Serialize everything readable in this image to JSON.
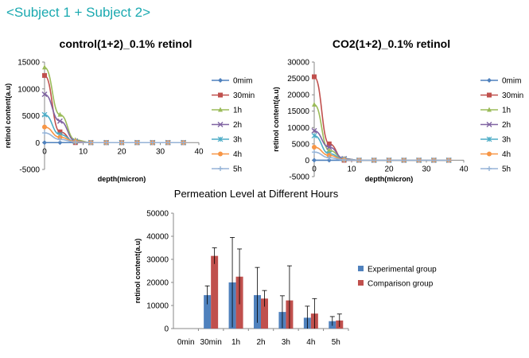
{
  "heading": "<Subject 1 + Subject 2>",
  "chart_data": [
    {
      "type": "line",
      "title": "control(1+2)_0.1% retinol",
      "xlabel": "depth(micron)",
      "ylabel": "retinol content(a.u)",
      "xlim": [
        0,
        40
      ],
      "ylim": [
        -5000,
        15000
      ],
      "xticks": [
        0,
        10,
        20,
        30,
        40
      ],
      "yticks": [
        -5000,
        0,
        5000,
        10000,
        15000
      ],
      "x": [
        0,
        4,
        8,
        12,
        16,
        20,
        24,
        28,
        32,
        36
      ],
      "legend_position": "right",
      "series": [
        {
          "name": "0mim",
          "color": "#4f81bd",
          "marker": "diamond",
          "values": [
            0,
            0,
            0,
            0,
            0,
            0,
            0,
            0,
            0,
            0
          ]
        },
        {
          "name": "30min",
          "color": "#c0504d",
          "marker": "square",
          "values": [
            12500,
            2000,
            0,
            0,
            0,
            0,
            0,
            0,
            0,
            0
          ]
        },
        {
          "name": "1h",
          "color": "#9bbb59",
          "marker": "triangle",
          "values": [
            14000,
            5200,
            500,
            0,
            0,
            0,
            0,
            0,
            0,
            0
          ]
        },
        {
          "name": "2h",
          "color": "#8064a2",
          "marker": "x",
          "values": [
            9000,
            4000,
            300,
            0,
            0,
            0,
            0,
            0,
            0,
            0
          ]
        },
        {
          "name": "3h",
          "color": "#4bacc6",
          "marker": "star",
          "values": [
            5200,
            1500,
            200,
            0,
            0,
            0,
            0,
            0,
            0,
            0
          ]
        },
        {
          "name": "4h",
          "color": "#f79646",
          "marker": "circle",
          "values": [
            2900,
            1000,
            200,
            0,
            0,
            0,
            0,
            0,
            0,
            0
          ]
        },
        {
          "name": "5h",
          "color": "#95b3d7",
          "marker": "plus",
          "values": [
            1800,
            600,
            100,
            0,
            0,
            0,
            0,
            0,
            0,
            0
          ]
        }
      ]
    },
    {
      "type": "line",
      "title": "CO2(1+2)_0.1% retinol",
      "xlabel": "depth(micron)",
      "ylabel": "retinol content(a.u)",
      "xlim": [
        0,
        40
      ],
      "ylim": [
        -5000,
        30000
      ],
      "xticks": [
        0,
        10,
        20,
        30,
        40
      ],
      "yticks": [
        -5000,
        0,
        5000,
        10000,
        15000,
        20000,
        25000,
        30000
      ],
      "x": [
        0,
        4,
        8,
        12,
        16,
        20,
        24,
        28,
        32,
        36
      ],
      "legend_position": "right",
      "series": [
        {
          "name": "0mim",
          "color": "#4f81bd",
          "marker": "diamond",
          "values": [
            0,
            0,
            0,
            0,
            0,
            0,
            0,
            0,
            0,
            0
          ]
        },
        {
          "name": "30min",
          "color": "#c0504d",
          "marker": "square",
          "values": [
            25500,
            5000,
            0,
            0,
            0,
            0,
            0,
            0,
            0,
            0
          ]
        },
        {
          "name": "1h",
          "color": "#9bbb59",
          "marker": "triangle",
          "values": [
            17000,
            3000,
            500,
            0,
            0,
            0,
            0,
            0,
            0,
            0
          ]
        },
        {
          "name": "2h",
          "color": "#8064a2",
          "marker": "x",
          "values": [
            9000,
            4000,
            500,
            0,
            0,
            0,
            0,
            0,
            0,
            0
          ]
        },
        {
          "name": "3h",
          "color": "#4bacc6",
          "marker": "star",
          "values": [
            7500,
            2000,
            300,
            0,
            0,
            0,
            0,
            0,
            0,
            0
          ]
        },
        {
          "name": "4h",
          "color": "#f79646",
          "marker": "circle",
          "values": [
            4000,
            1500,
            200,
            0,
            0,
            0,
            0,
            0,
            0,
            0
          ]
        },
        {
          "name": "5h",
          "color": "#95b3d7",
          "marker": "plus",
          "values": [
            2500,
            800,
            100,
            0,
            0,
            0,
            0,
            0,
            0,
            0
          ]
        }
      ]
    },
    {
      "type": "bar",
      "title": "Permeation Level at Different Hours",
      "xlabel": "",
      "ylabel": "retinol content(a.u)",
      "ylim": [
        0,
        50000
      ],
      "yticks": [
        0,
        10000,
        20000,
        30000,
        40000,
        50000
      ],
      "categories": [
        "0min",
        "30min",
        "1h",
        "2h",
        "3h",
        "4h",
        "5h"
      ],
      "error_bars": true,
      "legend_position": "right",
      "series": [
        {
          "name": "Experimental group",
          "color": "#4f81bd",
          "values": [
            0,
            14500,
            20000,
            14500,
            7200,
            4700,
            3200
          ],
          "errors": [
            0,
            4000,
            19500,
            12000,
            7000,
            5000,
            2000
          ]
        },
        {
          "name": "Comparison group",
          "color": "#c0504d",
          "values": [
            0,
            31500,
            22500,
            13000,
            12200,
            6500,
            3500
          ],
          "errors": [
            0,
            3500,
            12000,
            3500,
            15000,
            6500,
            2800
          ]
        }
      ]
    }
  ]
}
